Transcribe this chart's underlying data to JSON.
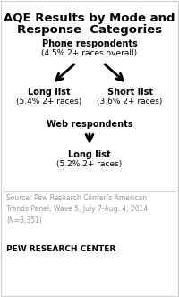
{
  "title_line1": "AQE Results by Mode and",
  "title_line2": "Response  Categories",
  "title_fontsize": 9.5,
  "bg_color": "#ffffff",
  "border_color": "#cccccc",
  "phone_label": "Phone respondents",
  "phone_sub": "(4.5% 2+ races overall)",
  "long_list_label": "Long list",
  "long_list_sub": "(5.4% 2+ races)",
  "short_list_label": "Short list",
  "short_list_sub": "(3.6% 2+ races)",
  "web_label": "Web respondents",
  "web_long_label": "Long list",
  "web_long_sub": "(5.2% 2+ races)",
  "source_text": "Source: Pew Research Center’s American\nTrends Panel, Wave 5, July 7-Aug. 4, 2014\n(N=3,351)",
  "footer_text": "PEW RESEARCH CENTER",
  "label_color": "#000000",
  "source_color": "#999999",
  "arrow_color": "#000000"
}
